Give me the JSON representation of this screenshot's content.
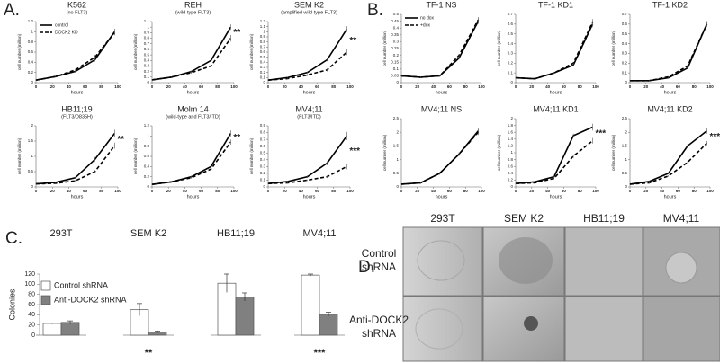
{
  "panel_labels": [
    "A.",
    "B.",
    "C.",
    "D."
  ],
  "chart_data": [
    {
      "type": "line",
      "title": "K562",
      "subtitle": "(no FLT3)",
      "xlabel": "hours",
      "ylabel": "cell number (million)",
      "legend": "upper left",
      "x": [
        0,
        24,
        48,
        72,
        96
      ],
      "xlim": [
        0,
        100
      ],
      "xticks": [
        0,
        20,
        40,
        60,
        80,
        100
      ],
      "ylim": [
        0,
        1.2
      ],
      "yticks": [
        0,
        0.2,
        0.4,
        0.6,
        0.8,
        1,
        1.2
      ],
      "series": [
        {
          "name": "control",
          "color": "#000000",
          "line_style": "solid",
          "values": [
            0.05,
            0.12,
            0.22,
            0.45,
            1.0
          ],
          "errors": [
            0.01,
            0.01,
            0.02,
            0.04,
            0.06
          ]
        },
        {
          "name": "DOCK2 KD",
          "color": "#000000",
          "line_style": "dashed",
          "values": [
            0.05,
            0.12,
            0.25,
            0.5,
            0.98
          ],
          "errors": [
            0.01,
            0.01,
            0.02,
            0.05,
            0.05
          ]
        }
      ]
    },
    {
      "type": "line",
      "title": "REH",
      "subtitle": "(wild-type FLT3)",
      "xlabel": "hours",
      "ylabel": "cell number (million)",
      "annotation": "**",
      "x": [
        0,
        24,
        48,
        72,
        96
      ],
      "xlim": [
        0,
        100
      ],
      "xticks": [
        0,
        20,
        40,
        60,
        80,
        100
      ],
      "ylim": [
        0,
        1.1
      ],
      "yticks": [
        0,
        0.1,
        0.2,
        0.3,
        0.4,
        0.5,
        0.6,
        0.7,
        0.8,
        0.9,
        1,
        1.1
      ],
      "series": [
        {
          "color": "#000000",
          "line_style": "solid",
          "values": [
            0.05,
            0.1,
            0.2,
            0.4,
            1.0
          ],
          "errors": [
            0.01,
            0.01,
            0.02,
            0.03,
            0.05
          ]
        },
        {
          "color": "#000000",
          "line_style": "dashed",
          "values": [
            0.05,
            0.1,
            0.18,
            0.3,
            0.8
          ],
          "errors": [
            0.01,
            0.01,
            0.02,
            0.03,
            0.06
          ]
        }
      ]
    },
    {
      "type": "line",
      "title": "SEM K2",
      "subtitle": "(amplified wild-type FLT3)",
      "xlabel": "hours",
      "ylabel": "cell number (million)",
      "annotation": "**",
      "x": [
        0,
        24,
        48,
        72,
        96
      ],
      "xlim": [
        0,
        100
      ],
      "xticks": [
        0,
        20,
        40,
        60,
        80,
        100
      ],
      "ylim": [
        0,
        1.2
      ],
      "yticks": [
        0,
        0.1,
        0.2,
        0.3,
        0.4,
        0.5,
        0.6,
        0.7,
        0.8,
        0.9,
        1,
        1.1,
        1.2
      ],
      "series": [
        {
          "color": "#000000",
          "line_style": "solid",
          "values": [
            0.05,
            0.1,
            0.2,
            0.45,
            1.05
          ],
          "errors": [
            0.01,
            0.01,
            0.02,
            0.03,
            0.06
          ]
        },
        {
          "color": "#000000",
          "line_style": "dashed",
          "values": [
            0.05,
            0.08,
            0.15,
            0.25,
            0.6
          ],
          "errors": [
            0.01,
            0.01,
            0.02,
            0.03,
            0.06
          ]
        }
      ]
    },
    {
      "type": "line",
      "title": "HB11;19",
      "subtitle": "(FLT3/D835H)",
      "xlabel": "hours",
      "ylabel": "cell number (million)",
      "annotation": "**",
      "x": [
        0,
        24,
        48,
        72,
        96
      ],
      "xlim": [
        0,
        100
      ],
      "xticks": [
        0,
        20,
        40,
        60,
        80,
        100
      ],
      "ylim": [
        0,
        2
      ],
      "yticks": [
        0,
        0.5,
        1,
        1.5,
        2
      ],
      "series": [
        {
          "color": "#000000",
          "line_style": "solid",
          "values": [
            0.1,
            0.15,
            0.3,
            0.9,
            1.75
          ],
          "errors": [
            0.01,
            0.02,
            0.03,
            0.08,
            0.12
          ]
        },
        {
          "color": "#000000",
          "line_style": "dashed",
          "values": [
            0.1,
            0.12,
            0.2,
            0.5,
            1.35
          ],
          "errors": [
            0.01,
            0.02,
            0.03,
            0.05,
            0.1
          ]
        }
      ]
    },
    {
      "type": "line",
      "title": "Molm 14",
      "subtitle": "(wild-type and FLT3/ITD)",
      "xlabel": "hours",
      "ylabel": "cell number (million)",
      "annotation": "**",
      "x": [
        0,
        24,
        48,
        72,
        96
      ],
      "xlim": [
        0,
        100
      ],
      "xticks": [
        0,
        20,
        40,
        60,
        80,
        100
      ],
      "ylim": [
        0,
        1.2
      ],
      "yticks": [
        0,
        0.2,
        0.4,
        0.6,
        0.8,
        1,
        1.2
      ],
      "series": [
        {
          "color": "#000000",
          "line_style": "solid",
          "values": [
            0.05,
            0.1,
            0.2,
            0.4,
            1.05
          ],
          "errors": [
            0.01,
            0.01,
            0.02,
            0.03,
            0.06
          ]
        },
        {
          "color": "#000000",
          "line_style": "dashed",
          "values": [
            0.05,
            0.1,
            0.18,
            0.35,
            0.88
          ],
          "errors": [
            0.01,
            0.01,
            0.02,
            0.03,
            0.05
          ]
        }
      ]
    },
    {
      "type": "line",
      "title": "MV4;11",
      "subtitle": "(FLT3/ITD)",
      "xlabel": "hours",
      "ylabel": "cell number (million)",
      "annotation": "***",
      "x": [
        0,
        24,
        48,
        72,
        96
      ],
      "xlim": [
        0,
        100
      ],
      "xticks": [
        0,
        20,
        40,
        60,
        80,
        100
      ],
      "ylim": [
        0,
        0.9
      ],
      "yticks": [
        0,
        0.1,
        0.2,
        0.3,
        0.4,
        0.5,
        0.6,
        0.7,
        0.8,
        0.9
      ],
      "series": [
        {
          "color": "#000000",
          "line_style": "solid",
          "values": [
            0.05,
            0.08,
            0.15,
            0.35,
            0.75
          ],
          "errors": [
            0.01,
            0.01,
            0.02,
            0.03,
            0.06
          ]
        },
        {
          "color": "#000000",
          "line_style": "dashed",
          "values": [
            0.05,
            0.06,
            0.1,
            0.15,
            0.3
          ],
          "errors": [
            0.01,
            0.01,
            0.01,
            0.02,
            0.04
          ]
        }
      ]
    },
    {
      "type": "line",
      "title": "TF-1 NS",
      "xlabel": "hours",
      "ylabel": "cell number (million)",
      "legend": "upper left",
      "x": [
        0,
        24,
        48,
        72,
        96
      ],
      "xlim": [
        0,
        100
      ],
      "xticks": [
        0,
        20,
        40,
        60,
        80,
        100
      ],
      "ylim": [
        0,
        0.5
      ],
      "yticks": [
        0,
        0.05,
        0.1,
        0.15,
        0.2,
        0.25,
        0.3,
        0.35,
        0.4,
        0.45,
        0.5
      ],
      "series": [
        {
          "name": "no dox",
          "color": "#000000",
          "line_style": "solid",
          "values": [
            0.05,
            0.04,
            0.05,
            0.18,
            0.45
          ],
          "errors": [
            0.005,
            0.005,
            0.005,
            0.01,
            0.02
          ]
        },
        {
          "name": "+dox",
          "color": "#000000",
          "line_style": "dashed",
          "values": [
            0.05,
            0.04,
            0.05,
            0.2,
            0.46
          ],
          "errors": [
            0.005,
            0.005,
            0.005,
            0.01,
            0.02
          ]
        }
      ]
    },
    {
      "type": "line",
      "title": "TF-1 KD1",
      "xlabel": "hours",
      "ylabel": "cell number (million)",
      "x": [
        0,
        24,
        48,
        72,
        96
      ],
      "xlim": [
        0,
        100
      ],
      "xticks": [
        0,
        20,
        40,
        60,
        80,
        100
      ],
      "ylim": [
        0,
        0.7
      ],
      "yticks": [
        0,
        0.1,
        0.2,
        0.3,
        0.4,
        0.5,
        0.6,
        0.7
      ],
      "series": [
        {
          "color": "#000000",
          "line_style": "solid",
          "values": [
            0.05,
            0.04,
            0.1,
            0.18,
            0.6
          ],
          "errors": [
            0.005,
            0.005,
            0.01,
            0.01,
            0.03
          ]
        },
        {
          "color": "#000000",
          "line_style": "dashed",
          "values": [
            0.05,
            0.04,
            0.1,
            0.2,
            0.62
          ],
          "errors": [
            0.005,
            0.005,
            0.01,
            0.01,
            0.03
          ]
        }
      ]
    },
    {
      "type": "line",
      "title": "TF-1 KD2",
      "xlabel": "hours",
      "ylabel": "cell number (million)",
      "x": [
        0,
        24,
        48,
        72,
        96
      ],
      "xlim": [
        0,
        100
      ],
      "xticks": [
        0,
        20,
        40,
        60,
        80,
        100
      ],
      "ylim": [
        0,
        0.7
      ],
      "yticks": [
        0,
        0.1,
        0.2,
        0.3,
        0.4,
        0.5,
        0.6,
        0.7
      ],
      "series": [
        {
          "color": "#000000",
          "line_style": "solid",
          "values": [
            0.02,
            0.02,
            0.05,
            0.15,
            0.6
          ],
          "errors": [
            0.005,
            0.005,
            0.005,
            0.01,
            0.03
          ]
        },
        {
          "color": "#000000",
          "line_style": "dashed",
          "values": [
            0.02,
            0.02,
            0.06,
            0.17,
            0.6
          ],
          "errors": [
            0.005,
            0.005,
            0.005,
            0.01,
            0.03
          ]
        }
      ]
    },
    {
      "type": "line",
      "title": "MV4;11 NS",
      "xlabel": "hours",
      "ylabel": "cell number (million)",
      "x": [
        0,
        24,
        48,
        72,
        96
      ],
      "xlim": [
        0,
        100
      ],
      "xticks": [
        0,
        20,
        40,
        60,
        80,
        100
      ],
      "ylim": [
        0,
        2.5
      ],
      "yticks": [
        0,
        0.5,
        1,
        1.5,
        2,
        2.5
      ],
      "series": [
        {
          "color": "#000000",
          "line_style": "solid",
          "values": [
            0.1,
            0.15,
            0.5,
            1.2,
            2.05
          ],
          "errors": [
            0.01,
            0.02,
            0.05,
            0.06,
            0.1
          ]
        },
        {
          "color": "#000000",
          "line_style": "dashed",
          "values": [
            0.1,
            0.15,
            0.5,
            1.2,
            2.0
          ],
          "errors": [
            0.01,
            0.02,
            0.05,
            0.06,
            0.1
          ]
        }
      ]
    },
    {
      "type": "line",
      "title": "MV4;11 KD1",
      "xlabel": "hours",
      "ylabel": "cell number (million)",
      "annotation": "***",
      "x": [
        0,
        24,
        48,
        72,
        96
      ],
      "xlim": [
        0,
        100
      ],
      "xticks": [
        0,
        20,
        40,
        60,
        80,
        100
      ],
      "ylim": [
        0,
        2
      ],
      "yticks": [
        0,
        0.2,
        0.4,
        0.6,
        0.8,
        1,
        1.2,
        1.4,
        1.6,
        1.8,
        2
      ],
      "series": [
        {
          "color": "#000000",
          "line_style": "solid",
          "values": [
            0.1,
            0.15,
            0.3,
            1.5,
            1.75
          ],
          "errors": [
            0.01,
            0.02,
            0.03,
            0.06,
            0.1
          ]
        },
        {
          "color": "#000000",
          "line_style": "dashed",
          "values": [
            0.1,
            0.12,
            0.25,
            0.9,
            1.35
          ],
          "errors": [
            0.01,
            0.02,
            0.03,
            0.05,
            0.08
          ]
        }
      ]
    },
    {
      "type": "line",
      "title": "MV4;11 KD2",
      "xlabel": "hours",
      "ylabel": "cell number (million)",
      "annotation": "***",
      "x": [
        0,
        24,
        48,
        72,
        96
      ],
      "xlim": [
        0,
        100
      ],
      "xticks": [
        0,
        20,
        40,
        60,
        80,
        100
      ],
      "ylim": [
        0,
        2.5
      ],
      "yticks": [
        0,
        0.5,
        1,
        1.5,
        2,
        2.5
      ],
      "series": [
        {
          "color": "#000000",
          "line_style": "solid",
          "values": [
            0.1,
            0.2,
            0.5,
            1.5,
            2.05
          ],
          "errors": [
            0.01,
            0.02,
            0.04,
            0.06,
            0.1
          ]
        },
        {
          "color": "#000000",
          "line_style": "dashed",
          "values": [
            0.1,
            0.15,
            0.4,
            0.9,
            1.6
          ],
          "errors": [
            0.01,
            0.02,
            0.03,
            0.05,
            0.08
          ]
        }
      ]
    },
    {
      "type": "bar",
      "ylabel": "Colonies",
      "legend": "upper left",
      "categories": [
        "293T",
        "SEM K2",
        "HB11;19",
        "MV4;11"
      ],
      "significance": [
        null,
        "**",
        null,
        "***"
      ],
      "ylim": [
        0,
        120
      ],
      "yticks": [
        0,
        20,
        40,
        60,
        80,
        100,
        120
      ],
      "series": [
        {
          "name": "Control shRNA",
          "color": "#ffffff",
          "values": [
            23,
            50,
            102,
            118
          ],
          "errors": [
            1,
            12,
            18,
            2
          ]
        },
        {
          "name": "Anti-DOCK2 shRNA",
          "color": "#808080",
          "values": [
            25,
            6,
            75,
            41
          ],
          "errors": [
            3,
            2,
            8,
            4
          ]
        }
      ]
    }
  ],
  "panel_d": {
    "columns": [
      "293T",
      "SEM K2",
      "HB11;19",
      "MV4;11"
    ],
    "rows": [
      [
        "Control",
        "shRNA"
      ],
      [
        "Anti-DOCK2",
        "shRNA"
      ]
    ]
  }
}
